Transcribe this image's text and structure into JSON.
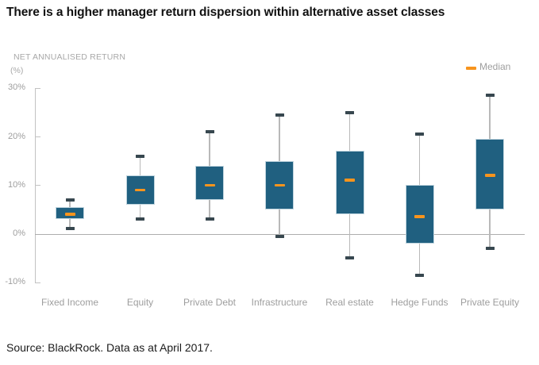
{
  "title": "There is a higher manager return dispersion within alternative asset classes",
  "source": "Source: BlackRock. Data as at April 2017.",
  "y_axis": {
    "title_line1": "NET ANNUALISED RETURN",
    "title_line2": "(%)",
    "ticks": [
      {
        "label": "30%",
        "value": 30
      },
      {
        "label": "20%",
        "value": 20
      },
      {
        "label": "10%",
        "value": 10
      },
      {
        "label": "0%",
        "value": 0
      },
      {
        "label": "-10%",
        "value": -10
      }
    ]
  },
  "legend": {
    "label": "Median"
  },
  "colors": {
    "box_fill": "#206080",
    "box_border": "#BFD4DE",
    "median": "#F7941D",
    "whisker_line": "#B9B9B9",
    "whisker_cap": "#37474F",
    "zero_line": "#ADADAD",
    "axis": "#C2C2C2",
    "label_text": "#9E9E9E",
    "title_text": "#111111"
  },
  "chart_data": {
    "type": "boxplot",
    "title": "There is a higher manager return dispersion within alternative asset classes",
    "ylabel": "NET ANNUALISED RETURN (%)",
    "ylim": [
      -10,
      30
    ],
    "ytick_step": 10,
    "grid": "zero-line-only",
    "legend_position": "top-right",
    "legend_entries": [
      "Median"
    ],
    "categories": [
      "Fixed Income",
      "Equity",
      "Private Debt",
      "Infrastructure",
      "Real estate",
      "Hedge Funds",
      "Private Equity"
    ],
    "series": [
      {
        "name": "Fixed Income",
        "low": 1,
        "q1": 3,
        "median": 4,
        "q3": 5.5,
        "high": 7
      },
      {
        "name": "Equity",
        "low": 3,
        "q1": 6,
        "median": 9,
        "q3": 12,
        "high": 16
      },
      {
        "name": "Private Debt",
        "low": 3,
        "q1": 7,
        "median": 10,
        "q3": 14,
        "high": 21
      },
      {
        "name": "Infrastructure",
        "low": -0.5,
        "q1": 5,
        "median": 10,
        "q3": 15,
        "high": 24.5
      },
      {
        "name": "Real estate",
        "low": -5,
        "q1": 4,
        "median": 11,
        "q3": 17,
        "high": 25
      },
      {
        "name": "Hedge Funds",
        "low": -8.5,
        "q1": -2,
        "median": 3.5,
        "q3": 10,
        "high": 20.5
      },
      {
        "name": "Private Equity",
        "low": -3,
        "q1": 5,
        "median": 12,
        "q3": 19.5,
        "high": 28.5
      }
    ]
  }
}
